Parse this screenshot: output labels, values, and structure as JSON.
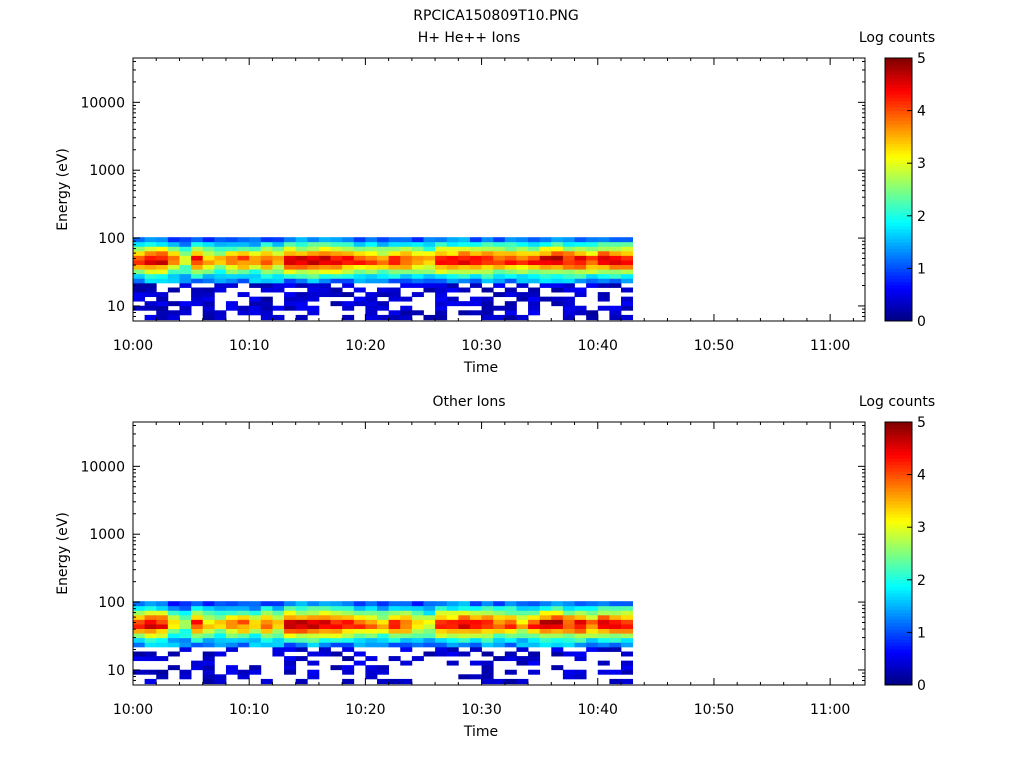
{
  "page_title": "RPCICA150809T10.PNG",
  "chart_data": [
    {
      "type": "heatmap",
      "title": "H+ He++ Ions",
      "xlabel": "Time",
      "ylabel": "Energy (eV)",
      "y_scale": "log",
      "ylim": [
        6,
        45000
      ],
      "xlim": [
        "10:00",
        "11:03"
      ],
      "x_ticks": [
        "10:00",
        "10:10",
        "10:20",
        "10:30",
        "10:40",
        "10:50",
        "11:00"
      ],
      "y_ticks": [
        "10",
        "100",
        "1000",
        "10000"
      ],
      "colorbar": {
        "label": "Log counts",
        "range": [
          0,
          5
        ],
        "ticks": [
          "0",
          "1",
          "2",
          "3",
          "4",
          "5"
        ],
        "colormap": "jet"
      },
      "data_time_range": [
        "10:00",
        "10:43"
      ],
      "energy_bins_eV": [
        6.8,
        8.0,
        9.3,
        10.9,
        12.7,
        14.8,
        17.3,
        20.2,
        23.6,
        27.6,
        32.2,
        37.6,
        43.9,
        51.3,
        59.9,
        69.9,
        81.6,
        95.3
      ],
      "time_bins": [
        "10:00",
        "10:01",
        "10:02",
        "10:03",
        "10:04",
        "10:05",
        "10:06",
        "10:07",
        "10:08",
        "10:09",
        "10:10",
        "10:11",
        "10:12",
        "10:13",
        "10:14",
        "10:15",
        "10:16",
        "10:17",
        "10:18",
        "10:19",
        "10:20",
        "10:21",
        "10:22",
        "10:23",
        "10:24",
        "10:25",
        "10:26",
        "10:27",
        "10:28",
        "10:29",
        "10:30",
        "10:31",
        "10:32",
        "10:33",
        "10:34",
        "10:35",
        "10:36",
        "10:37",
        "10:38",
        "10:39",
        "10:40",
        "10:41",
        "10:42"
      ],
      "peak_log_counts": [
        4.5,
        4.7,
        4.8,
        4.0,
        3.3,
        4.6,
        3.8,
        3.5,
        4.1,
        4.2,
        3.6,
        4.3,
        4.0,
        4.9,
        4.8,
        5.0,
        4.9,
        4.8,
        4.5,
        4.4,
        4.3,
        4.0,
        4.6,
        4.4,
        4.0,
        3.9,
        4.7,
        4.6,
        4.8,
        4.5,
        4.7,
        4.3,
        4.5,
        4.2,
        4.6,
        4.9,
        5.0,
        4.7,
        4.8,
        4.4,
        4.9,
        4.8,
        4.8
      ]
    },
    {
      "type": "heatmap",
      "title": "Other Ions",
      "xlabel": "Time",
      "ylabel": "Energy (eV)",
      "y_scale": "log",
      "ylim": [
        6,
        45000
      ],
      "xlim": [
        "10:00",
        "11:03"
      ],
      "x_ticks": [
        "10:00",
        "10:10",
        "10:20",
        "10:30",
        "10:40",
        "10:50",
        "11:00"
      ],
      "y_ticks": [
        "10",
        "100",
        "1000",
        "10000"
      ],
      "colorbar": {
        "label": "Log counts",
        "range": [
          0,
          5
        ],
        "ticks": [
          "0",
          "1",
          "2",
          "3",
          "4",
          "5"
        ],
        "colormap": "jet"
      },
      "data_time_range": [
        "10:00",
        "10:43"
      ],
      "energy_bins_eV": [
        6.8,
        8.0,
        9.3,
        10.9,
        12.7,
        14.8,
        17.3,
        20.2,
        23.6,
        27.6,
        32.2,
        37.6,
        43.9,
        51.3,
        59.9,
        69.9,
        81.6,
        95.3
      ],
      "time_bins": [
        "10:00",
        "10:01",
        "10:02",
        "10:03",
        "10:04",
        "10:05",
        "10:06",
        "10:07",
        "10:08",
        "10:09",
        "10:10",
        "10:11",
        "10:12",
        "10:13",
        "10:14",
        "10:15",
        "10:16",
        "10:17",
        "10:18",
        "10:19",
        "10:20",
        "10:21",
        "10:22",
        "10:23",
        "10:24",
        "10:25",
        "10:26",
        "10:27",
        "10:28",
        "10:29",
        "10:30",
        "10:31",
        "10:32",
        "10:33",
        "10:34",
        "10:35",
        "10:36",
        "10:37",
        "10:38",
        "10:39",
        "10:40",
        "10:41",
        "10:42"
      ],
      "peak_log_counts": [
        4.6,
        4.8,
        4.6,
        3.4,
        3.0,
        4.5,
        3.6,
        3.4,
        4.0,
        4.1,
        3.3,
        4.2,
        3.8,
        5.0,
        4.9,
        5.0,
        4.8,
        4.7,
        4.4,
        4.3,
        4.1,
        3.7,
        4.6,
        4.3,
        3.6,
        3.4,
        4.6,
        4.5,
        4.9,
        4.5,
        4.7,
        4.1,
        4.4,
        3.6,
        4.5,
        5.0,
        5.0,
        4.5,
        4.8,
        4.2,
        4.9,
        4.7,
        4.7
      ]
    }
  ]
}
